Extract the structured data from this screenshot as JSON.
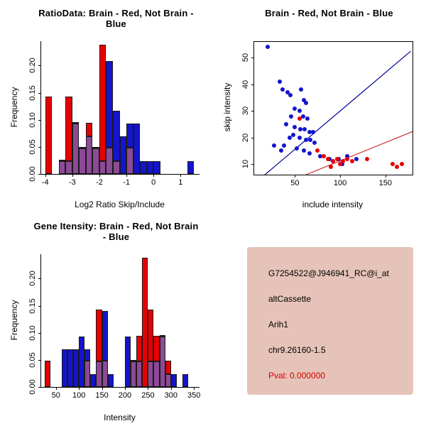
{
  "chart_data": [
    {
      "type": "bar",
      "subtype": "overlaid-histogram",
      "title": "RatioData: Brain - Red, Not Brain - Blue",
      "xlabel": "Log2 Ratio Skip/Include",
      "ylabel": "Frequency",
      "bin_start": -4.0,
      "bin_width": 0.25,
      "overlap_color": "#8d4a96",
      "series": [
        {
          "name": "Brain",
          "color": "#e80000",
          "values": [
            0.143,
            0,
            0.024,
            0.143,
            0.095,
            0.048,
            0.095,
            0.048,
            0.238,
            0.048,
            0.024,
            0,
            0.048,
            0,
            0,
            0,
            0,
            0,
            0,
            0,
            0,
            0
          ]
        },
        {
          "name": "Not Brain",
          "color": "#1414cc",
          "values": [
            0,
            0,
            0.023,
            0.023,
            0.093,
            0.047,
            0.07,
            0.047,
            0.023,
            0.209,
            0.116,
            0.07,
            0.093,
            0.093,
            0.023,
            0.023,
            0.023,
            0,
            0,
            0,
            0,
            0.023
          ]
        }
      ],
      "xlim": [
        -4.15,
        1.7
      ],
      "ylim": [
        0,
        0.245
      ],
      "xtick_values": [
        -4,
        -3,
        -2,
        -1,
        0,
        1
      ],
      "xtick_labels": [
        "-4",
        "-3",
        "-2",
        "-1",
        "0",
        "1"
      ],
      "ytick_values": [
        0,
        0.05,
        0.1,
        0.15,
        0.2
      ],
      "ytick_labels": [
        "0.00",
        "0.05",
        "0.10",
        "0.15",
        "0.20"
      ],
      "grid": false,
      "legend": "none"
    },
    {
      "type": "scatter",
      "title": "Brain - Red, Not Brain - Blue",
      "xlabel": "include intensity",
      "ylabel": "skip intensity",
      "series": [
        {
          "name": "Not Brain",
          "color": "#1414cc",
          "points": [
            [
              20,
              54
            ],
            [
              33,
              41
            ],
            [
              36,
              38
            ],
            [
              42,
              37
            ],
            [
              45,
              36
            ],
            [
              57,
              38
            ],
            [
              60,
              34
            ],
            [
              62,
              33
            ],
            [
              50,
              31
            ],
            [
              55,
              30
            ],
            [
              46,
              28
            ],
            [
              59,
              28
            ],
            [
              64,
              27
            ],
            [
              40,
              25
            ],
            [
              50,
              24
            ],
            [
              56,
              23
            ],
            [
              61,
              23
            ],
            [
              66,
              22
            ],
            [
              70,
              22
            ],
            [
              48,
              21
            ],
            [
              44,
              20
            ],
            [
              55,
              20
            ],
            [
              62,
              19
            ],
            [
              67,
              19
            ],
            [
              72,
              18
            ],
            [
              27,
              17
            ],
            [
              38,
              17
            ],
            [
              52,
              16
            ],
            [
              35,
              15
            ],
            [
              60,
              15
            ],
            [
              66,
              14
            ],
            [
              78,
              13
            ],
            [
              88,
              12
            ],
            [
              98,
              12
            ],
            [
              108,
              13
            ],
            [
              118,
              12
            ],
            [
              92,
              11
            ],
            [
              102,
              10
            ]
          ]
        },
        {
          "name": "Brain",
          "color": "#e80000",
          "points": [
            [
              55,
              27
            ],
            [
              75,
              15
            ],
            [
              82,
              13
            ],
            [
              87,
              12
            ],
            [
              92,
              11
            ],
            [
              97,
              12
            ],
            [
              103,
              11
            ],
            [
              108,
              12
            ],
            [
              90,
              9
            ],
            [
              100,
              10
            ],
            [
              113,
              11
            ],
            [
              130,
              12
            ],
            [
              158,
              10
            ],
            [
              168,
              10
            ],
            [
              163,
              9
            ]
          ]
        }
      ],
      "lines": [
        {
          "name": "not-brain-fit",
          "color": "#000099",
          "from": [
            10,
            4
          ],
          "to": [
            178,
            52.5
          ]
        },
        {
          "name": "brain-fit",
          "color": "#cc3333",
          "from": [
            48,
            4
          ],
          "to": [
            182,
            22.5
          ]
        }
      ],
      "xlim": [
        5,
        180
      ],
      "ylim": [
        6,
        56
      ],
      "xtick_values": [
        50,
        100,
        150
      ],
      "xtick_labels": [
        "50",
        "100",
        "150"
      ],
      "ytick_values": [
        10,
        20,
        30,
        40,
        50
      ],
      "ytick_labels": [
        "10",
        "20",
        "30",
        "40",
        "50"
      ],
      "grid": false,
      "legend": "none"
    },
    {
      "type": "bar",
      "subtype": "overlaid-histogram",
      "title": "Gene Itensity: Brain - Red, Not Brain - Blue",
      "xlabel": "Intensity",
      "ylabel": "Frequency",
      "bin_start": 25,
      "bin_width": 12.5,
      "overlap_color": "#8d4a96",
      "series": [
        {
          "name": "Brain",
          "color": "#e80000",
          "values": [
            0.048,
            0,
            0,
            0,
            0,
            0,
            0,
            0.048,
            0,
            0.143,
            0.048,
            0,
            0,
            0,
            0,
            0.048,
            0.095,
            0.238,
            0.143,
            0.095,
            0.095,
            0.048,
            0,
            0,
            0,
            0
          ]
        },
        {
          "name": "Not Brain",
          "color": "#1414cc",
          "values": [
            0,
            0,
            0,
            0.07,
            0.07,
            0.07,
            0.093,
            0.07,
            0.023,
            0.047,
            0.14,
            0.023,
            0,
            0,
            0.093,
            0.047,
            0.047,
            0,
            0.047,
            0.047,
            0.093,
            0.023,
            0.023,
            0,
            0.023,
            0
          ]
        }
      ],
      "xlim": [
        18,
        362
      ],
      "ylim": [
        0,
        0.245
      ],
      "xtick_values": [
        50,
        100,
        150,
        200,
        250,
        300,
        350
      ],
      "xtick_labels": [
        "50",
        "100",
        "150",
        "200",
        "250",
        "300",
        "350"
      ],
      "ytick_values": [
        0,
        0.05,
        0.1,
        0.15,
        0.2
      ],
      "ytick_labels": [
        "0.00",
        "0.05",
        "0.10",
        "0.15",
        "0.20"
      ],
      "grid": false,
      "legend": "none"
    }
  ],
  "info_panel": {
    "bg_color": "#e6c3b8",
    "lines": [
      {
        "text": "G7254522@J946941_RC@i_at",
        "color": "#000000"
      },
      {
        "text": "altCassette",
        "color": "#000000"
      },
      {
        "text": "Arih1",
        "color": "#000000"
      },
      {
        "text": "chr9.26160-1.5",
        "color": "#000000"
      },
      {
        "text": "Pval: 0.000000",
        "color": "#d40000"
      }
    ]
  }
}
